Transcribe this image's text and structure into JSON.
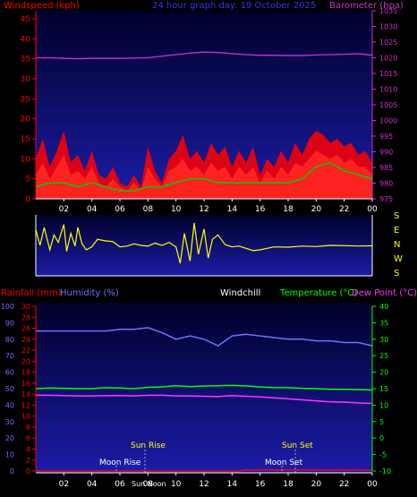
{
  "header": {
    "windspeed_label": "Windspeed (kph)",
    "graph_title": "24 hour graph day: 19 October 2025",
    "barometer_label": "Barometer (hpa)"
  },
  "direction_labels": [
    "S",
    "E",
    "N",
    "W",
    "S"
  ],
  "bottom_header": {
    "rainfall_label": "Rainfall (mm)",
    "humidity_label": "Humidity (%)",
    "windchill_label": "Windchill",
    "temperature_label": "Temperature (°C)",
    "dewpoint_label": "Dew Point (°C)"
  },
  "sun_moon": {
    "sun_rise": "Sun Rise",
    "sun_set": "Sun Set",
    "moon_rise": "Moon Rise",
    "moon_set": "Moon Set",
    "sun_noon": "Sun Noon"
  },
  "colors": {
    "background": "#000000",
    "plot_bg_top": "#000033",
    "plot_bg_bottom": "#1a1a99",
    "windspeed": "#ff0000",
    "gust": "#ff0000",
    "avg_wind": "#00cc00",
    "barometer": "#cc33cc",
    "wind_dir": "#ffff00",
    "humidity": "#7070ff",
    "temperature": "#00ff00",
    "dewpoint": "#ff33ff",
    "rain": "#ff0000",
    "title": "#3333ff",
    "text_white": "#ffffff"
  },
  "chart_data": [
    {
      "type": "line",
      "name": "wind_and_barometer",
      "x_ticks": [
        "02",
        "04",
        "06",
        "08",
        "10",
        "12",
        "14",
        "16",
        "18",
        "20",
        "22",
        "00"
      ],
      "y_left_ticks": [
        0,
        5,
        10,
        15,
        20,
        25,
        30,
        35,
        40,
        45
      ],
      "y_left_range": [
        0,
        47
      ],
      "y_right_ticks": [
        975,
        980,
        985,
        990,
        995,
        1000,
        1005,
        1010,
        1015,
        1020,
        1025,
        1030,
        1035
      ],
      "y_right_range": [
        975,
        1035
      ],
      "series": [
        {
          "key": "barometer",
          "axis": "right",
          "x": [
            0,
            1,
            2,
            3,
            4,
            5,
            6,
            7,
            8,
            9,
            10,
            11,
            12,
            13,
            14,
            15,
            16,
            17,
            18,
            19,
            20,
            21,
            22,
            23,
            24
          ],
          "values": [
            1020,
            1020,
            1019.8,
            1019.7,
            1019.8,
            1019.8,
            1019.8,
            1019.9,
            1020,
            1020.5,
            1021,
            1021.5,
            1021.8,
            1021.7,
            1021.3,
            1021,
            1020.8,
            1020.8,
            1020.7,
            1020.7,
            1020.9,
            1021,
            1021.1,
            1021.3,
            1020.8
          ]
        },
        {
          "key": "gust",
          "axis": "left",
          "x": [
            0,
            0.5,
            1,
            1.5,
            2,
            2.5,
            3,
            3.5,
            4,
            4.5,
            5,
            5.5,
            6,
            6.5,
            7,
            7.5,
            8,
            8.5,
            9,
            9.5,
            10,
            10.5,
            11,
            11.5,
            12,
            12.5,
            13,
            13.5,
            14,
            14.5,
            15,
            15.5,
            16,
            16.5,
            17,
            17.5,
            18,
            18.5,
            19,
            19.5,
            20,
            20.5,
            21,
            21.5,
            22,
            22.5,
            23,
            23.5,
            24
          ],
          "values": [
            10,
            15,
            8,
            12,
            17,
            9,
            11,
            7,
            12,
            6,
            5,
            8,
            4,
            3,
            6,
            3,
            13,
            7,
            4,
            10,
            12,
            16,
            10,
            12,
            9,
            14,
            11,
            13,
            8,
            12,
            9,
            13,
            6,
            10,
            8,
            12,
            9,
            14,
            11,
            15,
            17,
            16,
            14,
            15,
            13,
            14,
            11,
            12,
            9
          ]
        },
        {
          "key": "windspeed",
          "axis": "left",
          "x": [
            0,
            0.5,
            1,
            1.5,
            2,
            2.5,
            3,
            3.5,
            4,
            4.5,
            5,
            5.5,
            6,
            6.5,
            7,
            7.5,
            8,
            8.5,
            9,
            9.5,
            10,
            10.5,
            11,
            11.5,
            12,
            12.5,
            13,
            13.5,
            14,
            14.5,
            15,
            15.5,
            16,
            16.5,
            17,
            17.5,
            18,
            18.5,
            19,
            19.5,
            20,
            20.5,
            21,
            21.5,
            22,
            22.5,
            23,
            23.5,
            24
          ],
          "values": [
            6,
            9,
            5,
            8,
            11,
            6,
            7,
            5,
            8,
            4,
            3,
            5,
            3,
            2,
            4,
            2,
            8,
            5,
            3,
            7,
            8,
            10,
            7,
            8,
            6,
            9,
            7,
            8,
            5,
            8,
            6,
            8,
            4,
            7,
            5,
            8,
            6,
            9,
            8,
            10,
            12,
            11,
            10,
            11,
            9,
            10,
            8,
            8,
            6
          ]
        },
        {
          "key": "avg_wind",
          "axis": "left",
          "x": [
            0,
            1,
            2,
            3,
            4,
            5,
            6,
            7,
            8,
            9,
            10,
            11,
            12,
            13,
            14,
            15,
            16,
            17,
            18,
            19,
            20,
            21,
            22,
            23,
            24
          ],
          "values": [
            3,
            4,
            4,
            3,
            4,
            3,
            2,
            2,
            3,
            3,
            4,
            5,
            5,
            4,
            4,
            4,
            4,
            4,
            4,
            5,
            8,
            9,
            7,
            6,
            5
          ]
        }
      ]
    },
    {
      "type": "line",
      "name": "wind_direction",
      "y_labels": [
        "S",
        "E",
        "N",
        "W",
        "S"
      ],
      "x_ticks": [
        "02",
        "04",
        "06",
        "08",
        "10",
        "12",
        "14",
        "16",
        "18",
        "20",
        "22",
        "00"
      ],
      "series": [
        {
          "key": "wind_dir",
          "x": [
            0,
            0.3,
            0.6,
            1,
            1.3,
            1.6,
            2,
            2.2,
            2.5,
            2.8,
            3,
            3.3,
            3.6,
            4,
            4.4,
            5,
            5.5,
            6,
            6.5,
            7,
            7.5,
            8,
            8.5,
            9,
            9.5,
            10,
            10.3,
            10.6,
            11,
            11.3,
            11.6,
            12,
            12.3,
            12.6,
            13,
            13.5,
            14,
            14.5,
            15,
            15.5,
            16,
            16.5,
            17,
            18,
            19,
            20,
            21,
            22,
            23,
            24
          ],
          "values": [
            285,
            180,
            300,
            150,
            250,
            200,
            320,
            140,
            260,
            175,
            300,
            190,
            150,
            170,
            220,
            210,
            205,
            170,
            175,
            190,
            180,
            175,
            195,
            180,
            200,
            170,
            60,
            260,
            75,
            330,
            120,
            290,
            95,
            220,
            250,
            185,
            170,
            175,
            160,
            145,
            150,
            160,
            170,
            168,
            175,
            172,
            180,
            178,
            176,
            177
          ]
        }
      ]
    },
    {
      "type": "line",
      "name": "temperature_humidity_rain",
      "x_ticks": [
        "02",
        "04",
        "06",
        "08",
        "10",
        "12",
        "14",
        "16",
        "18",
        "20",
        "22",
        "00"
      ],
      "y_humidity_ticks": [
        0,
        10,
        20,
        30,
        40,
        50,
        60,
        70,
        80,
        90,
        100
      ],
      "y_rain_ticks": [
        0,
        2,
        4,
        6,
        8,
        10,
        12,
        14,
        16,
        18,
        20,
        22,
        24,
        26,
        28,
        30
      ],
      "y_right_ticks": [
        -10,
        -5,
        0,
        5,
        10,
        15,
        20,
        25,
        30,
        35,
        40
      ],
      "y_right_range": [
        -10,
        40
      ],
      "series": [
        {
          "key": "humidity",
          "axis": "humidity",
          "x": [
            0,
            1,
            2,
            3,
            4,
            5,
            6,
            7,
            8,
            9,
            10,
            11,
            12,
            13,
            14,
            15,
            16,
            17,
            18,
            19,
            20,
            21,
            22,
            23,
            24
          ],
          "values": [
            85,
            85,
            85,
            85,
            85,
            85,
            86,
            86,
            87,
            84,
            80,
            82,
            80,
            76,
            82,
            83,
            82,
            81,
            80,
            80,
            79,
            79,
            78,
            78,
            76
          ]
        },
        {
          "key": "temperature",
          "axis": "right",
          "x": [
            0,
            1,
            2,
            3,
            4,
            5,
            6,
            7,
            8,
            9,
            10,
            11,
            12,
            13,
            14,
            15,
            16,
            17,
            18,
            19,
            20,
            21,
            22,
            23,
            24
          ],
          "values": [
            15,
            15.2,
            15.1,
            15,
            15,
            15.3,
            15.2,
            15,
            15.4,
            15.5,
            15.9,
            15.6,
            15.8,
            15.9,
            16,
            15.8,
            15.5,
            15.3,
            15.3,
            15.1,
            15,
            14.8,
            14.8,
            14.7,
            14.6
          ]
        },
        {
          "key": "dewpoint",
          "axis": "right",
          "x": [
            0,
            1,
            2,
            3,
            4,
            5,
            6,
            7,
            8,
            9,
            10,
            11,
            12,
            13,
            14,
            15,
            16,
            17,
            18,
            19,
            20,
            21,
            22,
            23,
            24
          ],
          "values": [
            13,
            13,
            12.9,
            12.8,
            12.8,
            12.9,
            12.9,
            12.8,
            13,
            13,
            12.8,
            12.8,
            12.7,
            12.6,
            12.9,
            12.7,
            12.5,
            12.2,
            11.9,
            11.6,
            11.3,
            11,
            10.9,
            10.7,
            10.5
          ]
        },
        {
          "key": "rain",
          "axis": "rain",
          "x": [
            0,
            14.5,
            15,
            24
          ],
          "values": [
            0,
            0,
            0.2,
            0.2
          ]
        }
      ]
    }
  ]
}
